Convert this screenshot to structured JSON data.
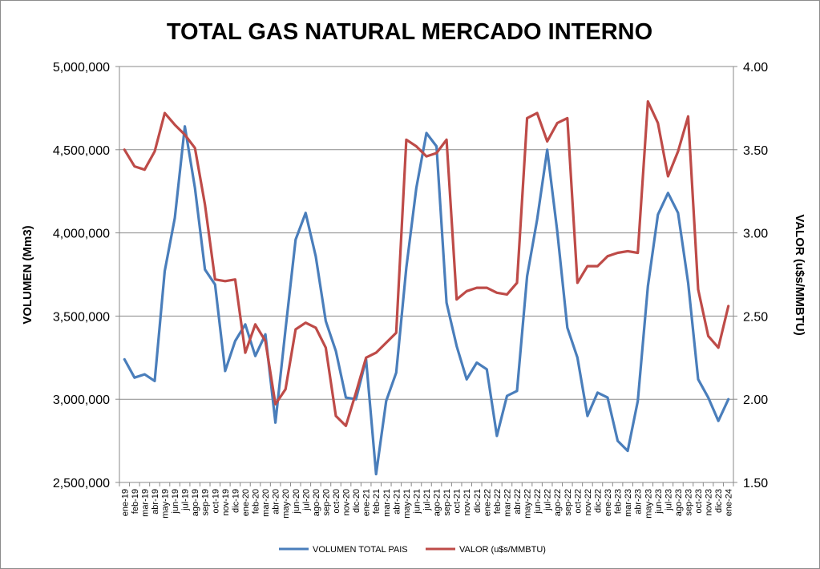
{
  "chart_data": {
    "type": "line",
    "title": "TOTAL GAS NATURAL MERCADO INTERNO",
    "ylabel_left": "VOLUMEN (Mm3)",
    "ylabel_right": "VALOR (u$s/MMBTU)",
    "ylim_left": [
      2500000,
      5000000
    ],
    "ylim_right": [
      1.5,
      4.0
    ],
    "yticks_left": [
      "2,500,000",
      "3,000,000",
      "3,500,000",
      "4,000,000",
      "4,500,000",
      "5,000,000"
    ],
    "yticks_right": [
      "1.50",
      "2.00",
      "2.50",
      "3.00",
      "3.50",
      "4.00"
    ],
    "grid": true,
    "legend_position": "bottom",
    "categories": [
      "ene-19",
      "feb-19",
      "mar-19",
      "abr-19",
      "may-19",
      "jun-19",
      "jul-19",
      "ago-19",
      "sep-19",
      "oct-19",
      "nov-19",
      "dic-19",
      "ene-20",
      "feb-20",
      "mar-20",
      "abr-20",
      "may-20",
      "jun-20",
      "jul-20",
      "ago-20",
      "sep-20",
      "oct-20",
      "nov-20",
      "dic-20",
      "ene-21",
      "feb-21",
      "mar-21",
      "abr-21",
      "may-21",
      "jun-21",
      "jul-21",
      "ago-21",
      "sep-21",
      "oct-21",
      "nov-21",
      "dic-21",
      "ene-22",
      "feb-22",
      "mar-22",
      "abr-22",
      "may-22",
      "jun-22",
      "jul-22",
      "ago-22",
      "sep-22",
      "oct-22",
      "nov-22",
      "dic-22",
      "ene-23",
      "feb-23",
      "mar-23",
      "abr-23",
      "may-23",
      "jun-23",
      "jul-23",
      "ago-23",
      "sep-23",
      "oct-23",
      "nov-23",
      "dic-23",
      "ene-24"
    ],
    "series": [
      {
        "name": "VOLUMEN TOTAL PAIS",
        "axis": "left",
        "color": "#4a7ebb",
        "values": [
          3240000,
          3130000,
          3150000,
          3110000,
          3770000,
          4090000,
          4640000,
          4270000,
          3780000,
          3690000,
          3170000,
          3350000,
          3450000,
          3260000,
          3390000,
          2860000,
          3420000,
          3960000,
          4120000,
          3860000,
          3470000,
          3290000,
          3010000,
          3000000,
          3240000,
          2550000,
          2990000,
          3160000,
          3790000,
          4270000,
          4600000,
          4520000,
          3580000,
          3320000,
          3120000,
          3220000,
          3180000,
          2780000,
          3020000,
          3050000,
          3740000,
          4080000,
          4500000,
          4010000,
          3430000,
          3250000,
          2900000,
          3040000,
          3010000,
          2750000,
          2690000,
          2990000,
          3680000,
          4110000,
          4240000,
          4120000,
          3700000,
          3120000,
          3010000,
          2870000,
          3000000
        ]
      },
      {
        "name": "VALOR (u$s/MMBTU)",
        "axis": "right",
        "color": "#be4b48",
        "values": [
          3.5,
          3.4,
          3.38,
          3.49,
          3.72,
          3.65,
          3.59,
          3.51,
          3.17,
          2.72,
          2.71,
          2.72,
          2.28,
          2.45,
          2.35,
          1.97,
          2.06,
          2.42,
          2.46,
          2.43,
          2.31,
          1.9,
          1.84,
          2.04,
          2.25,
          2.28,
          2.34,
          2.4,
          3.56,
          3.52,
          3.46,
          3.48,
          3.56,
          2.6,
          2.65,
          2.67,
          2.67,
          2.64,
          2.63,
          2.7,
          3.69,
          3.72,
          3.55,
          3.66,
          3.69,
          2.7,
          2.8,
          2.8,
          2.86,
          2.88,
          2.89,
          2.88,
          3.79,
          3.66,
          3.34,
          3.49,
          3.7,
          2.66,
          2.38,
          2.31,
          2.56
        ]
      }
    ]
  }
}
